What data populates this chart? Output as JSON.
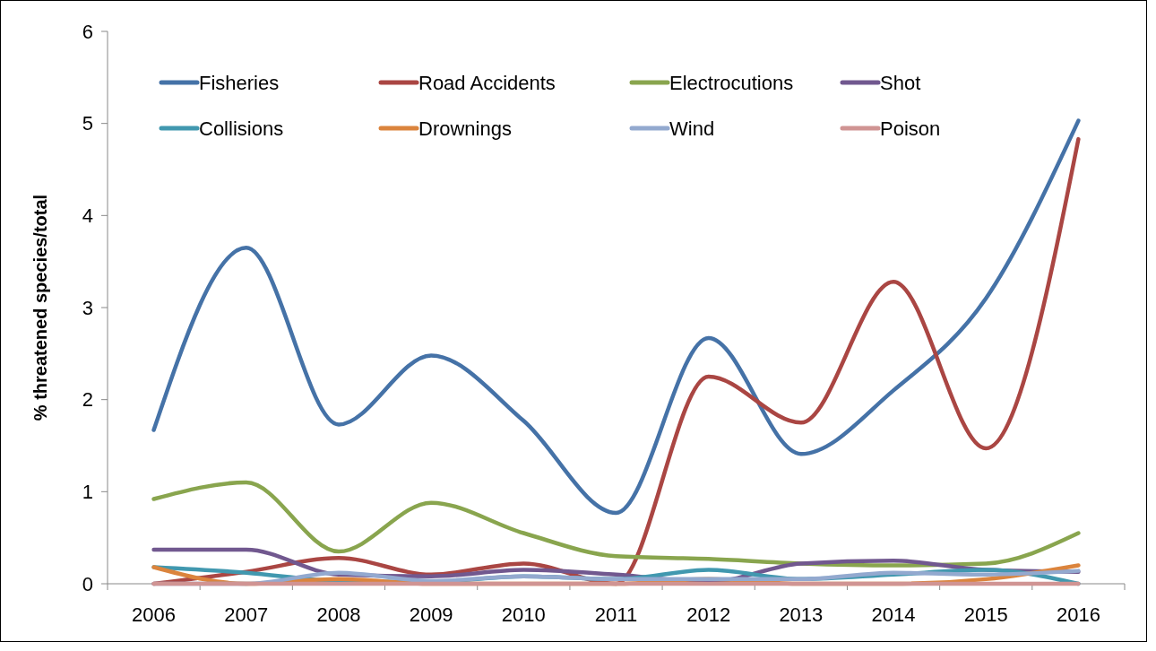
{
  "chart_data": {
    "type": "line",
    "ylabel": "% threatened species/total",
    "categories": [
      "2006",
      "2007",
      "2008",
      "2009",
      "2010",
      "2011",
      "2012",
      "2013",
      "2014",
      "2015",
      "2016"
    ],
    "ylim": [
      0,
      6
    ],
    "yticks": [
      0,
      1,
      2,
      3,
      4,
      5,
      6
    ],
    "grid": false,
    "legend": "top",
    "marker": "none",
    "line_style": "solid",
    "series": [
      {
        "name": "Fisheries",
        "color": "#4572a7",
        "values": [
          1.67,
          3.65,
          1.73,
          2.48,
          1.77,
          0.77,
          2.67,
          1.41,
          2.1,
          3.1,
          5.03
        ]
      },
      {
        "name": "Road Accidents",
        "color": "#aa4643",
        "values": [
          0,
          0.13,
          0.28,
          0.1,
          0.22,
          0,
          2.25,
          1.75,
          3.28,
          1.47,
          4.83
        ]
      },
      {
        "name": "Electrocutions",
        "color": "#89a54e",
        "values": [
          0.92,
          1.1,
          0.35,
          0.88,
          0.55,
          0.3,
          0.27,
          0.22,
          0.2,
          0.22,
          0.55
        ]
      },
      {
        "name": "Shot",
        "color": "#71588f",
        "values": [
          0.37,
          0.37,
          0.1,
          0.08,
          0.15,
          0.1,
          0.02,
          0.22,
          0.25,
          0.15,
          0.13
        ]
      },
      {
        "name": "Collisions",
        "color": "#4198af",
        "values": [
          0.18,
          0.12,
          0.03,
          0.02,
          0.08,
          0.05,
          0.15,
          0.05,
          0.1,
          0.15,
          0
        ]
      },
      {
        "name": "Drownings",
        "color": "#db843d",
        "values": [
          0.18,
          0,
          0.05,
          0,
          0,
          0,
          0.05,
          0,
          0,
          0.05,
          0.2
        ]
      },
      {
        "name": "Wind",
        "color": "#93a9cf",
        "values": [
          0,
          0,
          0.12,
          0.03,
          0.08,
          0.05,
          0.05,
          0.05,
          0.12,
          0.1,
          0.14
        ]
      },
      {
        "name": "Poison",
        "color": "#d09493",
        "values": [
          0,
          0,
          0,
          0,
          0,
          0,
          0,
          0,
          0,
          0,
          0
        ]
      }
    ]
  }
}
